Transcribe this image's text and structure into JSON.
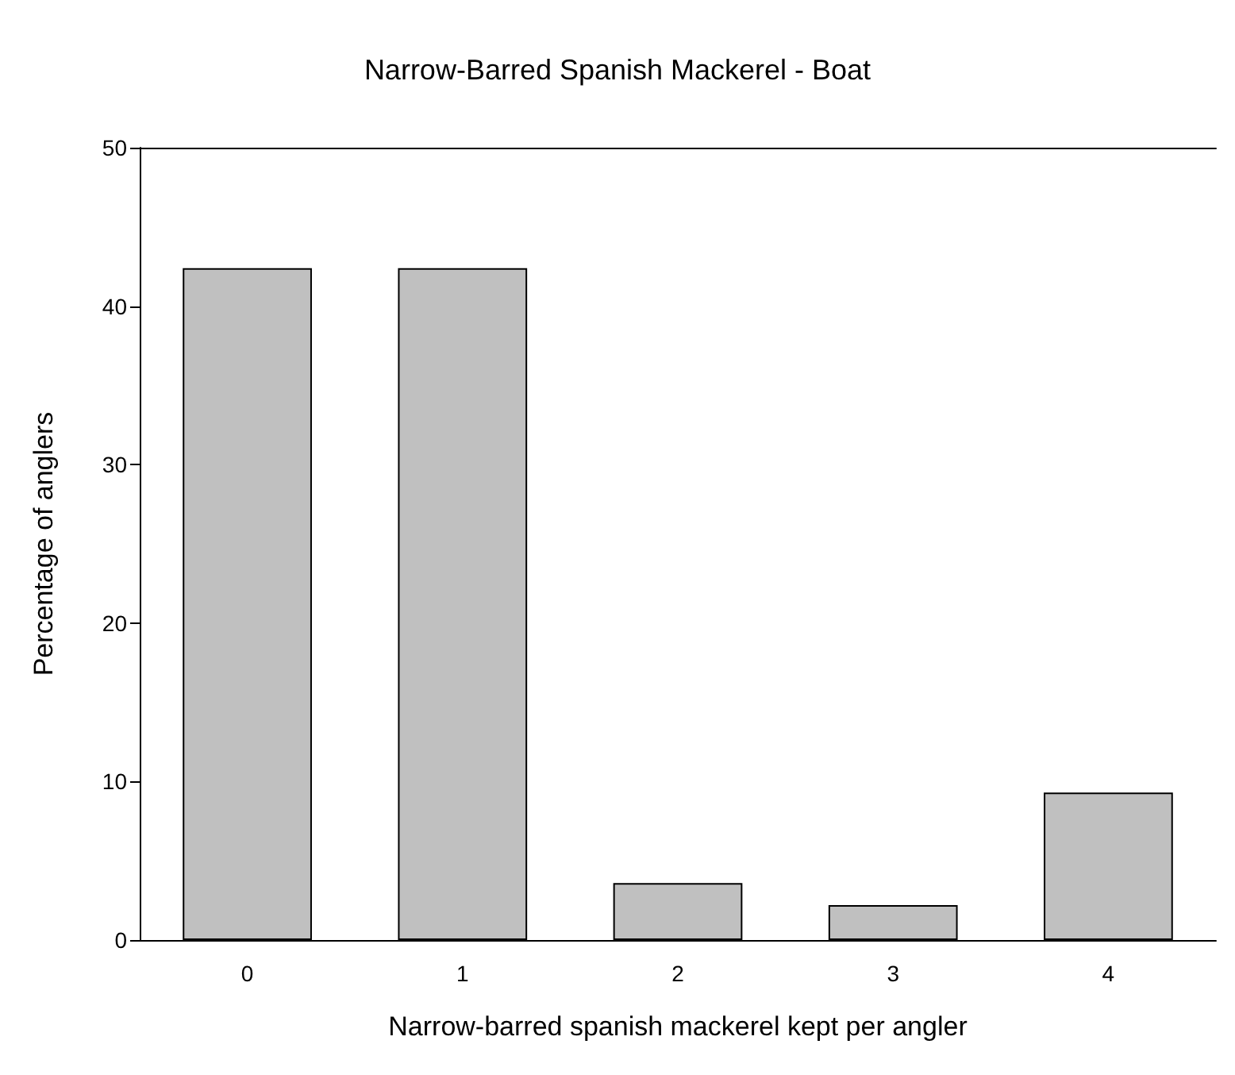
{
  "chart_data": {
    "type": "bar",
    "title": "Narrow-Barred Spanish Mackerel - Boat",
    "xlabel": "Narrow-barred spanish mackerel kept per angler",
    "ylabel": "Percentage of anglers",
    "categories": [
      "0",
      "1",
      "2",
      "3",
      "4"
    ],
    "values": [
      42.4,
      42.4,
      3.6,
      2.2,
      9.3
    ],
    "color": "#c0c0c0",
    "ylim": [
      0,
      50
    ],
    "yticks": [
      0,
      10,
      20,
      30,
      40,
      50
    ],
    "grid": false
  }
}
